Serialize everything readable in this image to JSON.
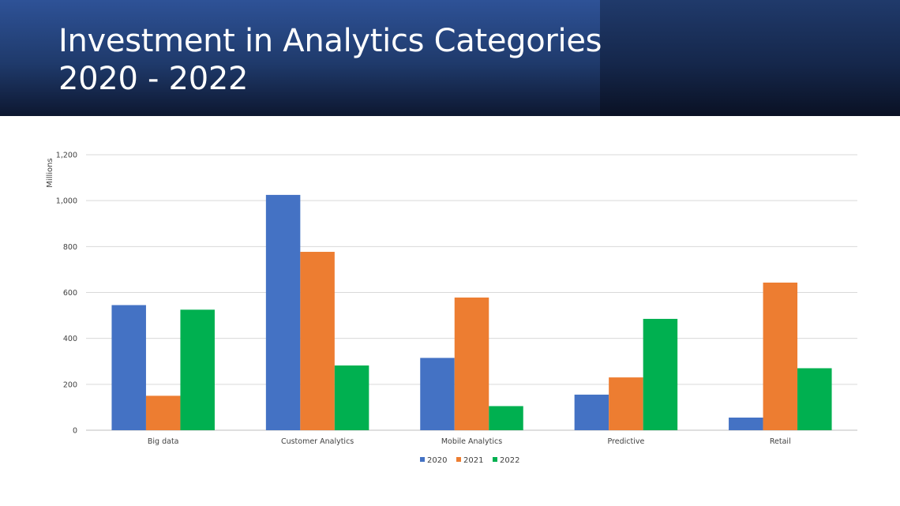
{
  "slide": {
    "title_line1": "Investment in Analytics Categories",
    "title_line2": "2020 - 2022"
  },
  "chart_data": {
    "type": "bar",
    "title": "",
    "xlabel": "",
    "ylabel": "Millions",
    "categories": [
      "Big data",
      "Customer Analytics",
      "Mobile Analytics",
      "Predictive",
      "Retail"
    ],
    "series": [
      {
        "name": "2020",
        "color": "#4472c4",
        "values": [
          545,
          1025,
          315,
          155,
          55
        ]
      },
      {
        "name": "2021",
        "color": "#ed7d31",
        "values": [
          150,
          777,
          578,
          230,
          643
        ]
      },
      {
        "name": "2022",
        "color": "#00b050",
        "values": [
          525,
          282,
          105,
          485,
          270
        ]
      }
    ],
    "ylim": [
      0,
      1200
    ],
    "yticks": [
      0,
      200,
      400,
      600,
      800,
      1000,
      1200
    ],
    "ytick_labels": [
      "0",
      "200",
      "400",
      "600",
      "800",
      "1,000",
      "1,200"
    ],
    "grid": true,
    "legend_position": "bottom"
  }
}
